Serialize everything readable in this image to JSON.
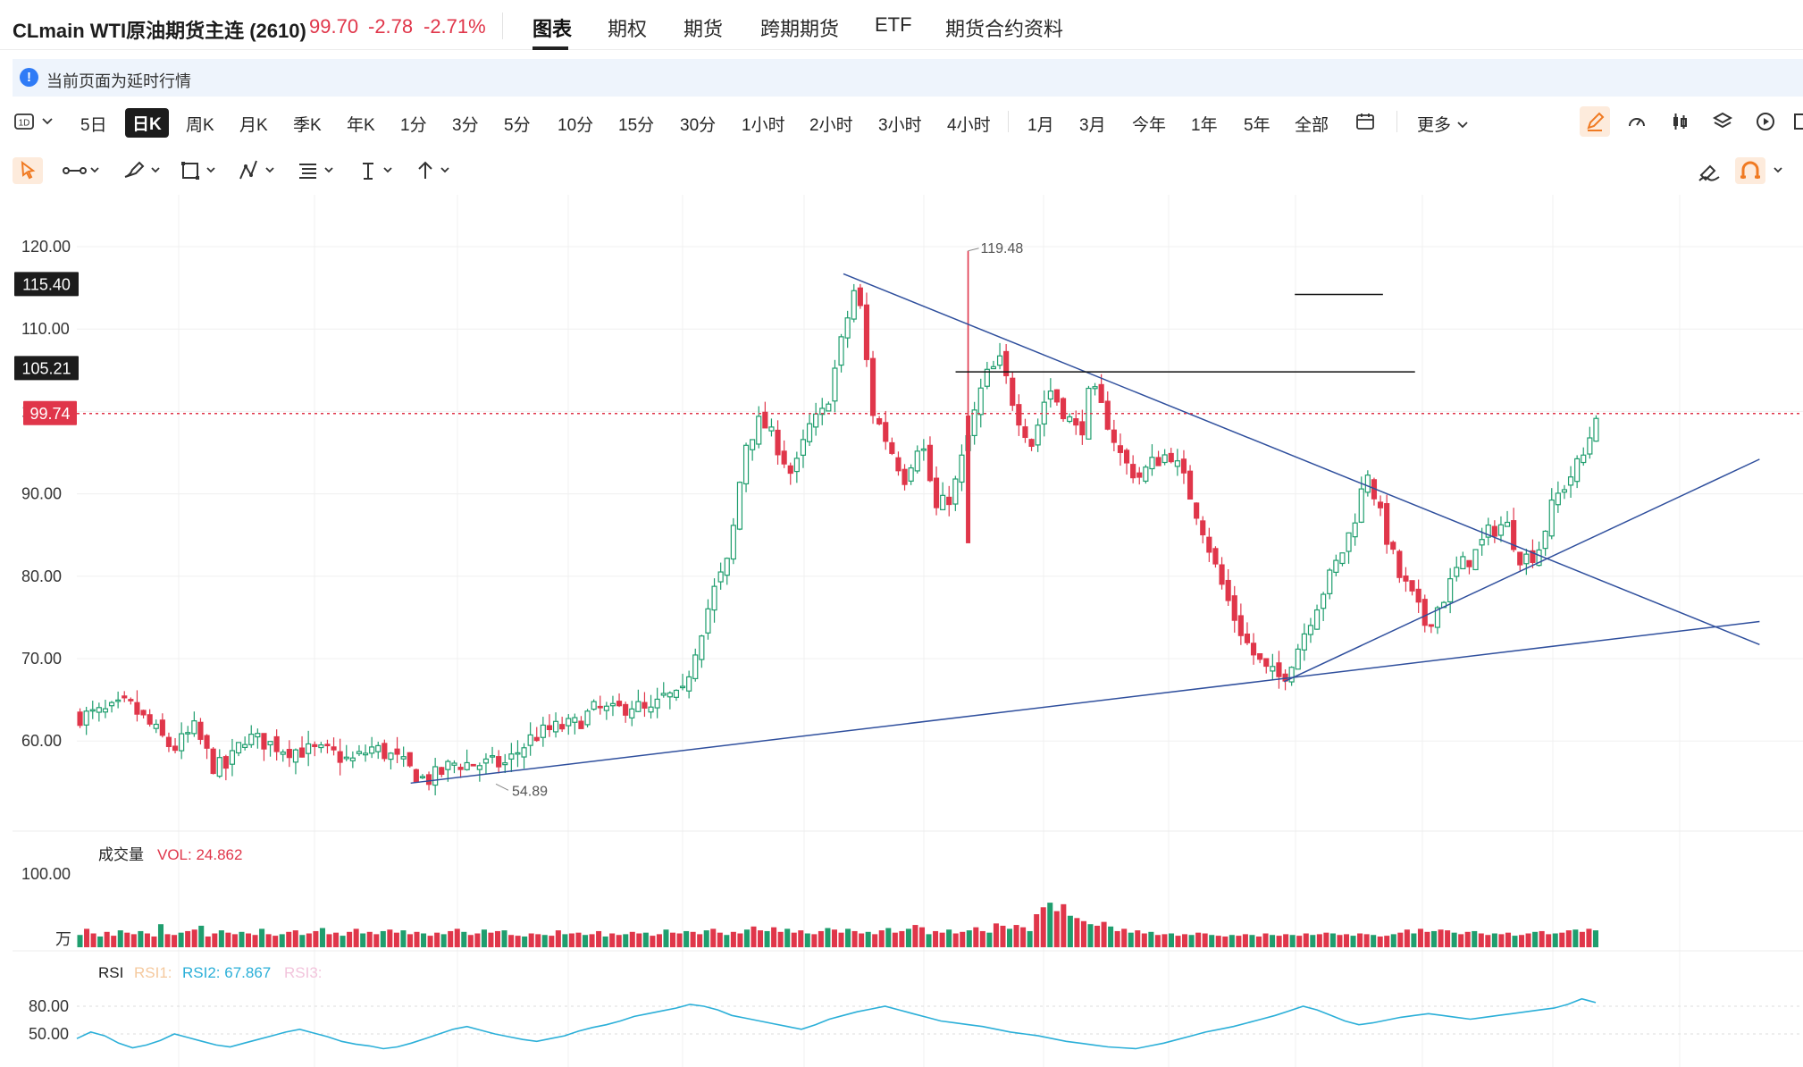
{
  "header": {
    "title": "CLmain WTI原油期货主连 (2610)",
    "price": "99.70",
    "change": "-2.78",
    "change_pct": "-2.71%",
    "tabs": [
      "图表",
      "期权",
      "期货",
      "跨期期货",
      "ETF",
      "期货合约资料"
    ],
    "active_tab": "图表"
  },
  "notice": {
    "text": "当前页面为延时行情"
  },
  "periods": {
    "interval_selector": "1D",
    "items": [
      "5日",
      "日K",
      "周K",
      "月K",
      "季K",
      "年K",
      "1分",
      "3分",
      "5分",
      "10分",
      "15分",
      "30分",
      "1小时",
      "2小时",
      "3小时",
      "4小时",
      "1月",
      "3月",
      "今年",
      "1年",
      "5年",
      "全部"
    ],
    "selected": "日K",
    "more": "更多"
  },
  "icons": {
    "toolbar_right": [
      "pencil-icon",
      "speedometer-icon",
      "candlestick-icon",
      "layers-icon",
      "replay-icon",
      "panel-icon"
    ],
    "drawing_tools": [
      "cursor-icon",
      "line-tool-icon",
      "brush-icon",
      "rectangle-tool-icon",
      "pattern-tool-icon",
      "fib-tool-icon",
      "text-tool-icon",
      "arrow-tool-icon"
    ],
    "drawing_right": [
      "eraser-icon",
      "magnet-icon"
    ]
  },
  "colors": {
    "up": "#1f9e6e",
    "down": "#e0364a",
    "trendline": "#2f4f9d",
    "rsi2": "#2bafd8",
    "accent": "#f07a22"
  },
  "chart_data": {
    "type": "candlestick",
    "ylim": [
      49,
      125
    ],
    "yticks": [
      "120.00",
      "110.00",
      "100.00",
      "90.00",
      "80.00",
      "70.00",
      "60.00"
    ],
    "price_tags": [
      {
        "value": "115.40",
        "style": "dark"
      },
      {
        "value": "105.21",
        "style": "dark"
      },
      {
        "value": "99.74",
        "style": "red"
      }
    ],
    "annotations": {
      "high_label": "119.48",
      "low_label": "54.89"
    },
    "series": [
      {
        "name": "price",
        "points": [
          [
            0,
            63
          ],
          [
            10,
            63.5
          ],
          [
            18,
            64.5
          ],
          [
            26,
            62
          ],
          [
            35,
            59
          ],
          [
            43,
            61.5
          ],
          [
            50,
            57
          ],
          [
            55,
            56.8
          ],
          [
            62,
            60.5
          ],
          [
            70,
            59.8
          ],
          [
            78,
            59
          ],
          [
            86,
            58.8
          ],
          [
            94,
            58.6
          ],
          [
            102,
            57.5
          ],
          [
            110,
            59.2
          ],
          [
            118,
            58
          ],
          [
            124,
            56.5
          ],
          [
            130,
            55.2
          ],
          [
            136,
            56.2
          ],
          [
            140,
            57.3
          ],
          [
            150,
            57.2
          ],
          [
            160,
            57.2
          ],
          [
            170,
            60.5
          ],
          [
            178,
            61.5
          ],
          [
            186,
            62
          ],
          [
            194,
            64
          ],
          [
            200,
            63.5
          ],
          [
            208,
            64.5
          ],
          [
            214,
            63.2
          ],
          [
            220,
            65.5
          ],
          [
            226,
            65
          ],
          [
            232,
            72
          ],
          [
            238,
            78
          ],
          [
            244,
            82
          ],
          [
            250,
            96
          ],
          [
            256,
            99
          ],
          [
            262,
            96
          ],
          [
            268,
            92
          ],
          [
            274,
            98
          ],
          [
            280,
            100
          ],
          [
            286,
            108
          ],
          [
            292,
            116
          ],
          [
            298,
            100
          ],
          [
            304,
            96
          ],
          [
            310,
            92
          ],
          [
            316,
            97
          ],
          [
            322,
            88
          ],
          [
            328,
            90
          ],
          [
            334,
            97
          ],
          [
            340,
            104
          ],
          [
            346,
            106
          ],
          [
            352,
            100
          ],
          [
            358,
            96
          ],
          [
            364,
            103
          ],
          [
            370,
            100
          ],
          [
            376,
            97
          ],
          [
            380,
            103
          ],
          [
            386,
            99
          ],
          [
            392,
            94
          ],
          [
            398,
            92
          ],
          [
            404,
            94
          ],
          [
            410,
            95
          ],
          [
            416,
            91
          ],
          [
            422,
            86
          ],
          [
            428,
            80
          ],
          [
            434,
            75
          ],
          [
            440,
            71
          ],
          [
            446,
            68.5
          ],
          [
            452,
            67.5
          ],
          [
            458,
            71.5
          ],
          [
            464,
            76
          ],
          [
            470,
            80
          ],
          [
            476,
            84
          ],
          [
            480,
            88
          ],
          [
            484,
            93
          ],
          [
            490,
            86
          ],
          [
            496,
            80
          ],
          [
            500,
            78
          ],
          [
            506,
            74
          ],
          [
            512,
            77
          ],
          [
            518,
            81
          ],
          [
            524,
            82.5
          ],
          [
            530,
            85.5
          ],
          [
            536,
            86.5
          ],
          [
            542,
            82
          ],
          [
            548,
            83
          ],
          [
            554,
            89
          ],
          [
            560,
            92
          ],
          [
            566,
            95
          ],
          [
            570,
            100
          ]
        ]
      }
    ],
    "trendlines": [
      {
        "from": [
          125,
          54.89
        ],
        "to": [
          630,
          74.5
        ]
      },
      {
        "from": [
          287,
          116.7
        ],
        "to": [
          630,
          71.7
        ]
      },
      {
        "from": [
          452,
          67.2
        ],
        "to": [
          630,
          94.2
        ]
      },
      {
        "from": [
          329,
          104.8
        ],
        "to": [
          501,
          104.8
        ]
      },
      {
        "from": [
          456,
          114.2
        ],
        "to": [
          489,
          114.2
        ]
      }
    ],
    "volume": {
      "title": "成交量",
      "label": "VOL: 24.862",
      "ytick": "100.00",
      "unit": "万",
      "values": [
        16,
        24,
        18,
        14,
        20,
        15,
        22,
        19,
        17,
        21,
        18,
        14,
        30,
        17,
        16,
        19,
        21,
        23,
        28,
        14,
        18,
        22,
        19,
        17,
        20,
        18,
        16,
        24,
        17,
        15,
        17,
        20,
        22,
        16,
        18,
        21,
        25,
        17,
        19,
        15,
        20,
        24,
        18,
        20,
        17,
        21,
        23,
        19,
        22,
        17,
        20,
        18,
        15,
        19,
        17,
        21,
        24,
        20,
        16,
        18,
        23,
        19,
        21,
        22,
        16,
        15,
        14,
        18,
        17,
        16,
        15,
        22,
        17,
        18,
        19,
        16,
        17,
        21,
        14,
        18,
        16,
        17,
        20,
        18,
        19,
        15,
        17,
        23,
        19,
        18,
        21,
        20,
        17,
        22,
        24,
        19,
        16,
        20,
        18,
        23,
        27,
        22,
        21,
        26,
        20,
        24,
        19,
        22,
        18,
        17,
        21,
        25,
        23,
        19,
        24,
        21,
        18,
        20,
        17,
        22,
        25,
        19,
        21,
        24,
        29,
        26,
        17,
        21,
        19,
        23,
        18,
        20,
        22,
        26,
        21,
        19,
        31,
        28,
        24,
        29,
        26,
        21,
        43,
        52,
        58,
        47,
        56,
        41,
        38,
        34,
        30,
        28,
        33,
        27,
        21,
        24,
        19,
        22,
        18,
        20,
        16,
        17,
        18,
        15,
        17,
        16,
        19,
        18,
        16,
        15,
        14,
        16,
        15,
        17,
        16,
        14,
        18,
        16,
        15,
        17,
        16,
        15,
        18,
        16,
        17,
        19,
        18,
        16,
        17,
        15,
        18,
        17,
        16,
        14,
        15,
        17,
        19,
        23,
        18,
        24,
        20,
        21,
        23,
        22,
        19,
        17,
        20,
        21,
        18,
        16,
        18,
        17,
        19,
        15,
        16,
        18,
        20,
        21,
        17,
        18,
        19,
        22,
        23,
        20,
        24,
        22
      ],
      "max": 100
    },
    "rsi": {
      "title": "RSI",
      "labels": [
        "RSI1:",
        "RSI2: 67.867",
        "RSI3:"
      ],
      "yticks": [
        "80.00",
        "50.00"
      ],
      "values": [
        45,
        52,
        48,
        40,
        35,
        38,
        43,
        50,
        46,
        42,
        38,
        36,
        40,
        44,
        48,
        52,
        55,
        51,
        47,
        42,
        39,
        37,
        34,
        36,
        40,
        45,
        50,
        55,
        58,
        54,
        50,
        47,
        44,
        42,
        45,
        48,
        53,
        57,
        60,
        64,
        69,
        72,
        75,
        78,
        82,
        80,
        76,
        70,
        67,
        64,
        61,
        58,
        55,
        60,
        66,
        70,
        74,
        77,
        80,
        76,
        72,
        68,
        64,
        62,
        60,
        58,
        55,
        52,
        50,
        48,
        45,
        42,
        40,
        38,
        36,
        35,
        34,
        37,
        40,
        44,
        48,
        52,
        55,
        58,
        62,
        66,
        70,
        75,
        80,
        76,
        70,
        64,
        60,
        62,
        65,
        68,
        70,
        72,
        70,
        68,
        66,
        68,
        70,
        72,
        74,
        76,
        78,
        82,
        88,
        84
      ]
    }
  }
}
